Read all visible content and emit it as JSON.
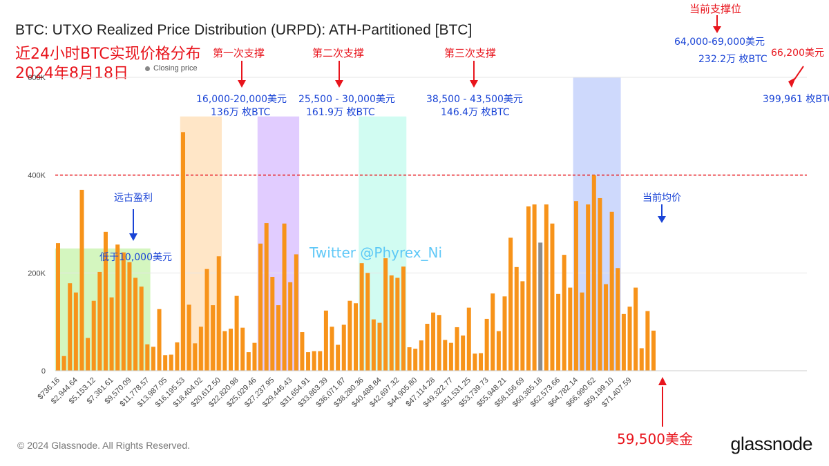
{
  "title": "BTC: UTXO Realized Price Distribution (URPD): ATH-Partitioned [BTC]",
  "subtitle_cn_1": "近24小时BTC实现价格分布",
  "subtitle_cn_2": "2024年8月18日",
  "legend": {
    "closing_price": "Closing price"
  },
  "watermark": "Twitter @Phyrex_Ni",
  "footer": "© 2024 Glassnode. All Rights Reserved.",
  "logo": "glassnode",
  "colors": {
    "bar": "#f7931a",
    "closing_bar": "#8c8c8c",
    "annotation_red": "#e8141c",
    "annotation_blue": "#1a44d6"
  },
  "annotations": {
    "support1_title": "第一次支撑",
    "support1_range": "16,000-20,000美元",
    "support1_amount": "136万 枚BTC",
    "support2_title": "第二次支撑",
    "support2_range": "25,500 - 30,000美元",
    "support2_amount": "161.9万 枚BTC",
    "support3_title": "第三次支撑",
    "support3_range": "38,500 - 43,500美元",
    "support3_amount": "146.4万 枚BTC",
    "current_support_title": "当前支撑位",
    "current_support_range": "64,000-69,000美元",
    "current_support_amount": "232.2万 枚BTC",
    "right_price": "66,200美元",
    "right_amount": "399,961 枚BTC",
    "ancient_profit": "远古盈利",
    "below_10k": "低于10,000美元",
    "current_avg": "当前均价",
    "price_usd": "59,500美金"
  },
  "chart_data": {
    "type": "bar",
    "title": "BTC: UTXO Realized Price Distribution (URPD): ATH-Partitioned [BTC]",
    "ylim": [
      0,
      600000
    ],
    "y_ticks": [
      "0",
      "200K",
      "400K",
      "600K"
    ],
    "y_tick_values": [
      0,
      200000,
      400000,
      600000
    ],
    "reference_line": 400000,
    "x_tick_labels": [
      "$736.16",
      "$2,944.64",
      "$5,153.12",
      "$7,361.61",
      "$9,570.09",
      "$11,778.57",
      "$13,987.05",
      "$16,195.53",
      "$18,404.02",
      "$20,612.50",
      "$22,820.98",
      "$25,029.46",
      "$27,237.95",
      "$29,446.43",
      "$31,654.91",
      "$33,863.39",
      "$36,071.87",
      "$38,280.36",
      "$40,488.84",
      "$42,697.32",
      "$44,905.80",
      "$47,114.28",
      "$49,322.77",
      "$51,531.25",
      "$53,739.73",
      "$55,948.21",
      "$58,156.69",
      "$60,365.18",
      "$62,573.66",
      "$64,782.14",
      "$66,990.62",
      "$69,199.10",
      "$71,407.59"
    ],
    "closing_index": 81,
    "values": [
      261000,
      30000,
      179000,
      160000,
      370000,
      67000,
      143000,
      202000,
      284000,
      150000,
      258000,
      242000,
      222000,
      190000,
      172000,
      54000,
      49000,
      126000,
      32000,
      33000,
      58000,
      488000,
      135000,
      56000,
      90000,
      208000,
      134000,
      234000,
      81000,
      86000,
      153000,
      88000,
      38000,
      57000,
      260000,
      302000,
      192000,
      134000,
      301000,
      181000,
      238000,
      79000,
      38000,
      40000,
      40000,
      123000,
      90000,
      53000,
      94000,
      143000,
      138000,
      220000,
      200000,
      105000,
      98000,
      230000,
      195000,
      190000,
      213000,
      48000,
      45000,
      62000,
      96000,
      119000,
      114000,
      63000,
      57000,
      89000,
      72000,
      129000,
      35000,
      36000,
      106000,
      158000,
      81000,
      152000,
      272000,
      212000,
      183000,
      336000,
      340000,
      262000,
      340000,
      301000,
      157000,
      237000,
      170000,
      347000,
      160000,
      340000,
      400000,
      353000,
      177000,
      325000,
      210000,
      116000,
      131000,
      170000,
      46000,
      122000,
      82000
    ],
    "highlight_bands": [
      {
        "from_index": 0,
        "to_index": 15,
        "top_value": 250000,
        "color": "#ccf5b4"
      },
      {
        "from_index": 21,
        "to_index": 27,
        "top_value": 520000,
        "color": "#ffe2bd"
      },
      {
        "from_index": 34,
        "to_index": 40,
        "top_value": 520000,
        "color": "#dcc3ff"
      },
      {
        "from_index": 51,
        "to_index": 58,
        "top_value": 520000,
        "color": "#c9fbf0"
      },
      {
        "from_index": 87,
        "to_index": 94,
        "top_value": 600000,
        "color": "#c6d2fb"
      }
    ]
  }
}
